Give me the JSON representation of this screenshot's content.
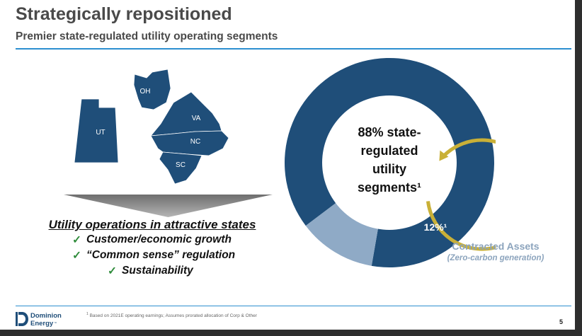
{
  "header": {
    "title": "Strategically repositioned",
    "subtitle": "Premier state-regulated utility operating segments"
  },
  "map": {
    "states": [
      "OH",
      "VA",
      "UT",
      "NC",
      "SC"
    ],
    "color": "#1f4e79"
  },
  "bullets": {
    "heading": "Utility operations in attractive states",
    "items": [
      "Customer/economic growth",
      "“Common sense” regulation",
      "Sustainability"
    ],
    "check_glyph": "✓"
  },
  "chart_data": {
    "type": "pie",
    "style": "donut",
    "slices": [
      {
        "label": "88% state-regulated utility segments",
        "value": 88,
        "color": "#1f4e79"
      },
      {
        "label": "Contracted Assets",
        "value": 12,
        "color": "#8faac6"
      }
    ],
    "center_text": [
      "88% state-",
      "regulated",
      "utility",
      "segments¹"
    ],
    "slice_label": "12%¹",
    "annotation": {
      "title": "Contracted Assets",
      "subtitle": "(Zero-carbon generation)"
    },
    "accent_arrow_color": "#c9b037"
  },
  "footer": {
    "logo_line1": "Dominion",
    "logo_line2": "Energy",
    "logo_mark": "™",
    "footnote_marker": "1",
    "footnote": "Based on 2021E operating earnings; Assumes prorated allocation of Corp & Other",
    "page_number": "5"
  }
}
